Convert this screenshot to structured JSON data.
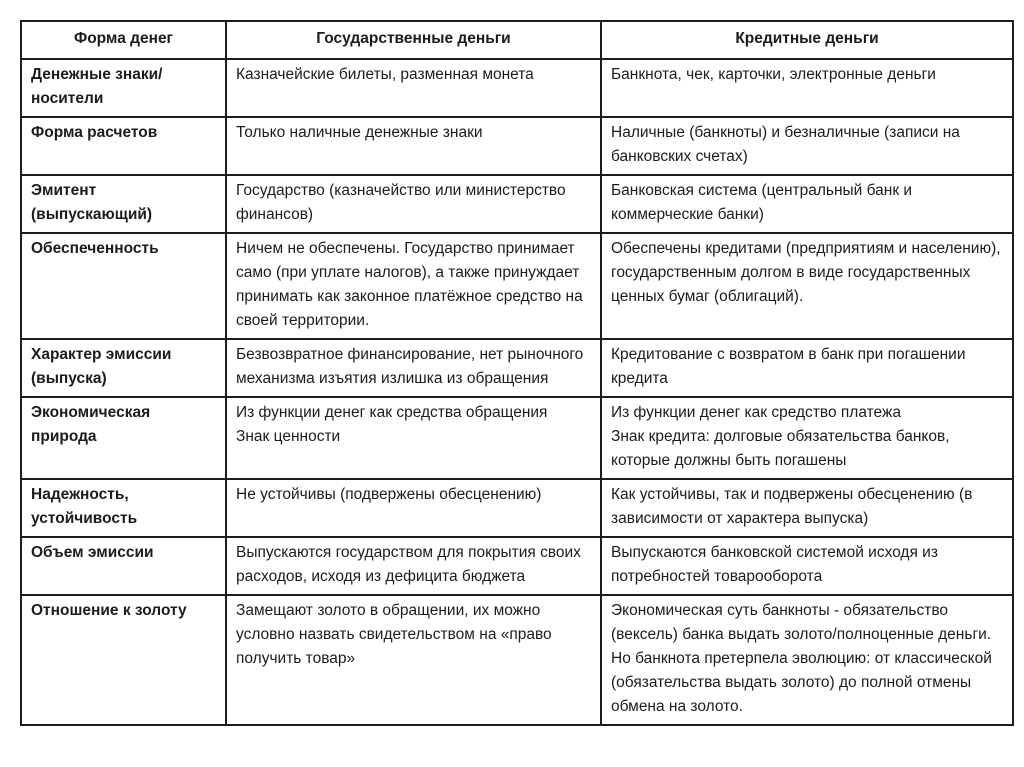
{
  "table": {
    "border_color": "#1c1c1c",
    "text_color": "#1c1c1c",
    "headers": {
      "form": "Форма денег",
      "state": "Государственные деньги",
      "credit": "Кредитные деньги"
    },
    "rows": [
      {
        "label": "Денежные знаки/\nносители",
        "state": "Казначейские билеты, разменная монета",
        "credit": "Банкнота, чек, карточки, электронные деньги"
      },
      {
        "label": "Форма расчетов",
        "state": "Только наличные денежные знаки",
        "credit": "Наличные (банкноты) и безналичные (записи на банковских счетах)"
      },
      {
        "label": "Эмитент\n(выпускающий)",
        "state": "Государство (казначейство или министерство финансов)",
        "credit": "Банковская система (центральный банк и коммерческие банки)"
      },
      {
        "label": "Обеспеченность",
        "state": "Ничем не обеспечены. Государство принимает само (при уплате налогов), а также принуждает принимать как законное платёжное средство на своей территории.",
        "credit": "Обеспечены кредитами (предприятиям и населению), государственным долгом в виде государственных ценных бумаг (облигаций)."
      },
      {
        "label": "Характер эмиссии\n(выпуска)",
        "state": "Безвозвратное финансирование, нет рыночного механизма изъятия излишка из обращения",
        "credit": "Кредитование с возвратом в банк при погашении кредита"
      },
      {
        "label": "Экономическая\nприрода",
        "state": "Из функции денег как средства обращения\nЗнак ценности",
        "credit": "Из функции денег как средство платежа\nЗнак кредита: долговые обязательства банков, которые должны быть погашены"
      },
      {
        "label": "Надежность,\nустойчивость",
        "state": "Не устойчивы (подвержены обесценению)",
        "credit": "Как устойчивы, так и подвержены обесценению (в зависимости от характера выпуска)"
      },
      {
        "label": "Объем эмиссии",
        "state": "Выпускаются государством для покрытия своих расходов, исходя из дефицита бюджета",
        "credit": "Выпускаются банковской системой исходя из потребностей товарооборота"
      },
      {
        "label": "Отношение к золоту",
        "state": "Замещают золото в обращении, их можно условно назвать свидетельством на «право получить товар»",
        "credit": "Экономическая суть банкноты - обязательство (вексель) банка выдать золото/полноценные деньги. Но банкнота претерпела эволюцию: от классической (обязательства выдать золото) до полной отмены обмена на золото."
      }
    ]
  }
}
